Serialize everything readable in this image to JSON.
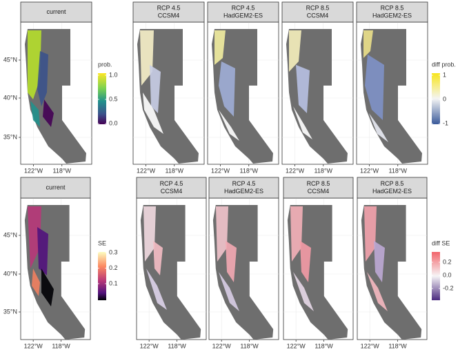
{
  "rows": [
    {
      "panels": [
        {
          "strip": [
            "current"
          ]
        },
        {
          "strip": [
            "RCP 4.5",
            "CCSM4"
          ]
        },
        {
          "strip": [
            "RCP 4.5",
            "HadGEM2-ES"
          ]
        },
        {
          "strip": [
            "RCP 8.5",
            "CCSM4"
          ]
        },
        {
          "strip": [
            "RCP 8.5",
            "HadGEM2-ES"
          ]
        }
      ],
      "y_ticks": [
        "45°N",
        "40°N",
        "35°N"
      ],
      "x_ticks": [
        "122°W",
        "118°W"
      ],
      "legends": [
        {
          "title": "prob.",
          "labels": [
            "1.0",
            "0.5",
            "0.0"
          ]
        },
        {
          "title": "diff prob.",
          "labels": [
            "1",
            "0",
            "-1"
          ]
        }
      ]
    },
    {
      "panels": [
        {
          "strip": [
            "current"
          ]
        },
        {
          "strip": [
            "RCP 4.5",
            "CCSM4"
          ]
        },
        {
          "strip": [
            "RCP 4.5",
            "HadGEM2-ES"
          ]
        },
        {
          "strip": [
            "RCP 8.5",
            "CCSM4"
          ]
        },
        {
          "strip": [
            "RCP 8.5",
            "HadGEM2-ES"
          ]
        }
      ],
      "y_ticks": [
        "45°N",
        "40°N",
        "35°N"
      ],
      "x_ticks": [
        "122°W",
        "118°W"
      ],
      "legends": [
        {
          "title": "SE",
          "labels": [
            "0.3",
            "0.2",
            "0.1"
          ]
        },
        {
          "title": "diff SE",
          "labels": [
            "0.2",
            "0.0",
            "-0.2"
          ]
        }
      ]
    }
  ]
}
